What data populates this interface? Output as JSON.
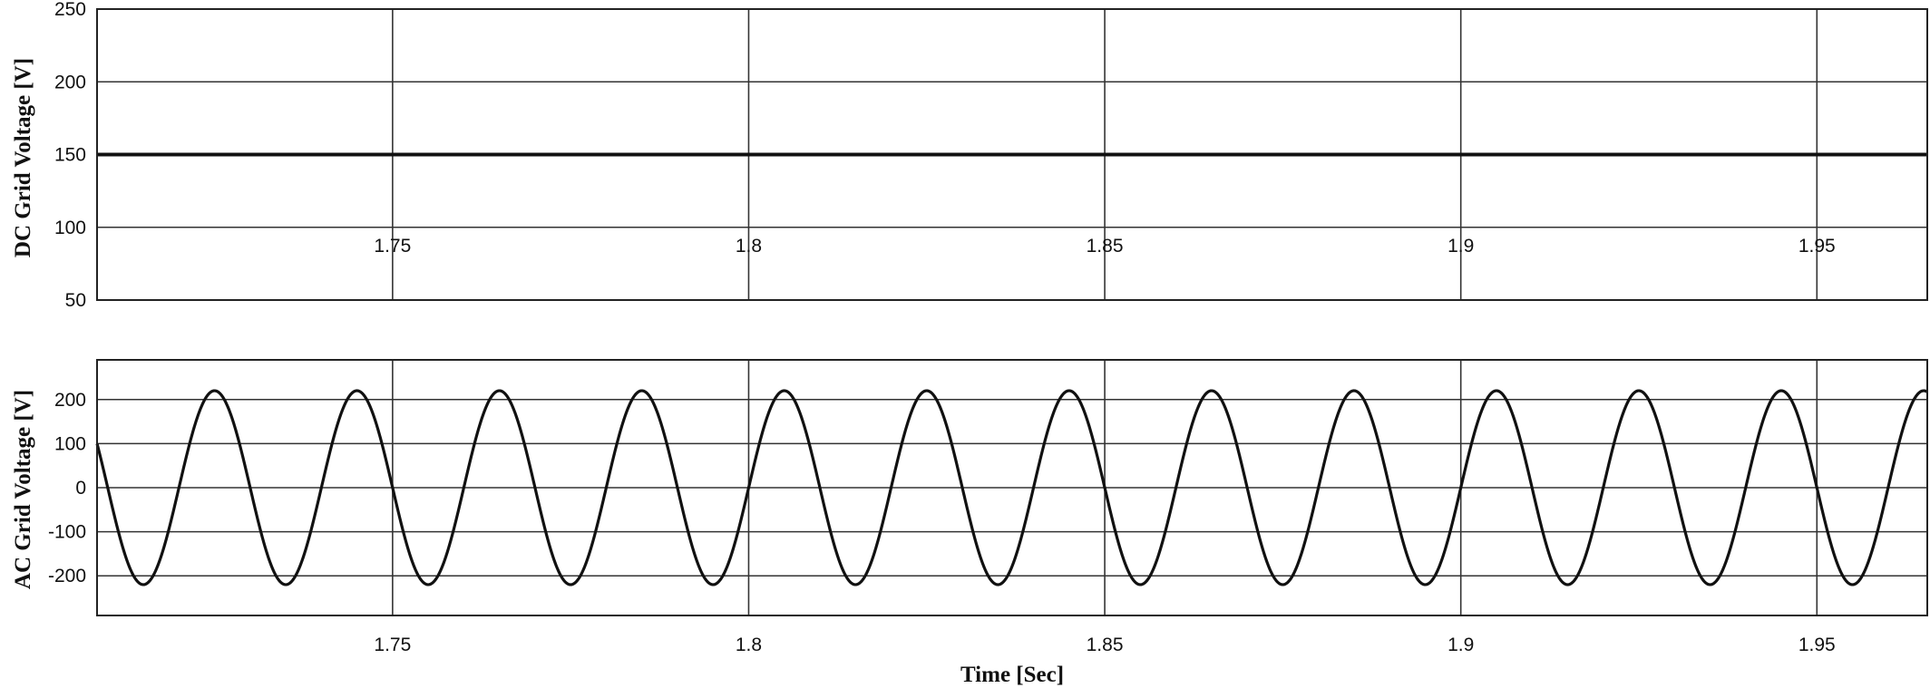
{
  "chart_data": [
    {
      "type": "line",
      "title": "",
      "xlabel": "",
      "ylabel": "DC Grid Voltage [V]",
      "xlim": [
        1.7085,
        1.9655
      ],
      "ylim": [
        50,
        250
      ],
      "x_ticks": [
        "1.75",
        "1.8",
        "1.85",
        "1.9",
        "1.95"
      ],
      "y_ticks": [
        "50",
        "100",
        "150",
        "200",
        "250"
      ],
      "grid": true,
      "series": [
        {
          "color": "#111111",
          "function": "constant",
          "value": 150
        }
      ]
    },
    {
      "type": "line",
      "title": "",
      "xlabel": "Time [Sec]",
      "ylabel": "AC Grid Voltage [V]",
      "xlim": [
        1.7085,
        1.9655
      ],
      "ylim": [
        -290,
        290
      ],
      "x_ticks": [
        "1.75",
        "1.8",
        "1.85",
        "1.9",
        "1.95"
      ],
      "y_ticks": [
        "-200",
        "-100",
        "0",
        "100",
        "200"
      ],
      "grid": true,
      "series": [
        {
          "color": "#111111",
          "function": "sine",
          "amplitude_V": 220,
          "frequency_Hz": 50,
          "zero_crossing_rising_s": 1.72
        }
      ]
    }
  ]
}
